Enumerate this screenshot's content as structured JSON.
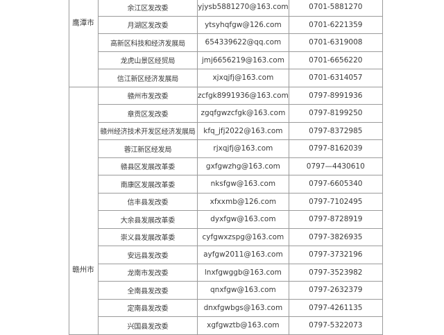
{
  "groups": [
    {
      "city": "鹰潭市",
      "rows": [
        {
          "org": "余江区发改委",
          "email": "yjysb5881270@163.com",
          "phone": "0701-5881270"
        },
        {
          "org": "月湖区发改委",
          "email": "ytsyhqfgw@126.com",
          "phone": "0701-6221359"
        },
        {
          "org": "高新区科技和经济发展局",
          "email": "654339622@qq.com",
          "phone": "0701-6319008"
        },
        {
          "org": "龙虎山景区经贸局",
          "email": "jmj6656219@163.com",
          "phone": "0701-6656220"
        },
        {
          "org": "信江新区经济发展局",
          "email": "xjxqjfj@163.com",
          "phone": "0701-6314057"
        }
      ]
    },
    {
      "city": "赣州市",
      "rows": [
        {
          "org": "赣州市发改委",
          "email": "zcfgk8991936@163.com",
          "phone": "0797-8991936"
        },
        {
          "org": "章贡区发改委",
          "email": "zgqfgwzcfgk@163.com",
          "phone": "0797-8199250"
        },
        {
          "org": "赣州经济技术开发区经济发展局",
          "email": "kfq_jfj2022@163.com",
          "phone": "0797-8372985"
        },
        {
          "org": "蓉江新区经发局",
          "email": "rjxqjfj@163.com",
          "phone": "0797-8162039"
        },
        {
          "org": "赣县区发展改革委",
          "email": "gxfgwzhg@163.com",
          "phone": "0797—4430610"
        },
        {
          "org": "南康区发展改革委",
          "email": "nksfgw@163.com",
          "phone": "0797-6605340"
        },
        {
          "org": "信丰县发改委",
          "email": "xfxxmb@126.com",
          "phone": "0797-7102495"
        },
        {
          "org": "大余县发展改革委",
          "email": "dyxfgw@163.com",
          "phone": "0797-8728919"
        },
        {
          "org": "崇义县发展改革委",
          "email": "cyfgwxzspg@163.com",
          "phone": "0797-3826935"
        },
        {
          "org": "安远县发改委",
          "email": "ayfgw2011@163.com",
          "phone": "0797-3732196"
        },
        {
          "org": "龙南市发改委",
          "email": "lnxfgwggb@163.com",
          "phone": "0797-3523982"
        },
        {
          "org": "全南县发改委",
          "email": "qnxfgw@163.com",
          "phone": "0797-2632379"
        },
        {
          "org": "定南县发改委",
          "email": "dnxfgwbgs@163.com",
          "phone": "0797-4261135"
        },
        {
          "org": "兴国县发改委",
          "email": "xgfgwztb@163.com",
          "phone": "0797-5322073"
        }
      ]
    }
  ]
}
